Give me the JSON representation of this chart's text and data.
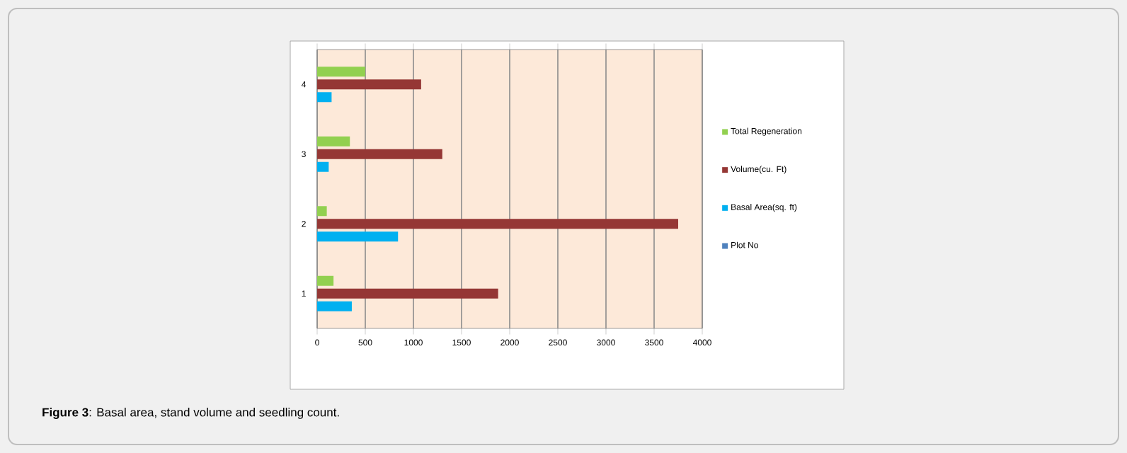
{
  "chart_data": {
    "type": "bar",
    "orientation": "horizontal",
    "categories": [
      "4",
      "3",
      "2",
      "1"
    ],
    "series": [
      {
        "name": "Plot No",
        "color": "#4f81bd",
        "values": [
          null,
          null,
          null,
          null
        ]
      },
      {
        "name": "Basal Area(sq. ft)",
        "color": "#00b0f0",
        "values": [
          150,
          120,
          840,
          360
        ]
      },
      {
        "name": "Volume(cu. Ft)",
        "color": "#953735",
        "values": [
          1080,
          1300,
          3750,
          1880
        ]
      },
      {
        "name": "Total Regeneration",
        "color": "#92d050",
        "values": [
          500,
          340,
          100,
          170
        ]
      }
    ],
    "xlim": [
      0,
      4000
    ],
    "xticks": [
      0,
      500,
      1000,
      1500,
      2000,
      2500,
      3000,
      3500,
      4000
    ],
    "grid": "x",
    "legend": "right",
    "annotations": [
      "**Figure 3**: Basal area, stand volume and seedling count."
    ]
  }
}
